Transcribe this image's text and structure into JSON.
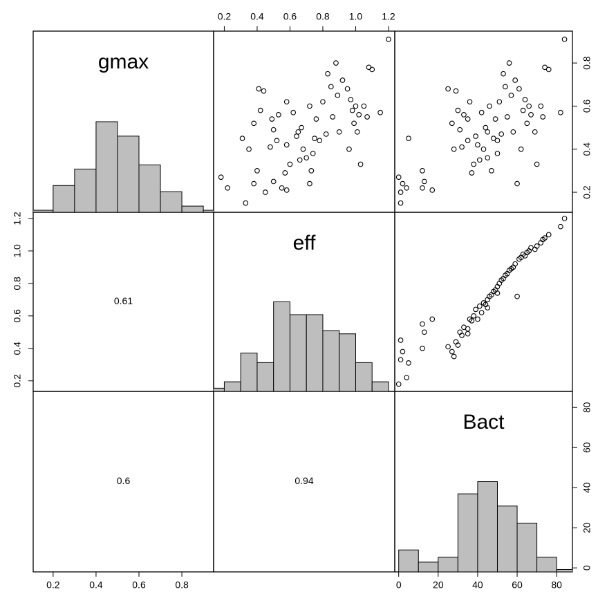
{
  "chart_data": {
    "type": "pairs",
    "variables": [
      {
        "name": "gmax",
        "lim": [
          0.107,
          0.948
        ],
        "ticks": [
          0.2,
          0.4,
          0.6,
          0.8
        ],
        "values": [
          0.27,
          0.15,
          0.2,
          0.24,
          0.22,
          0.45,
          0.3,
          0.22,
          0.25,
          0.21,
          0.68,
          0.52,
          0.4,
          0.67,
          0.58,
          0.49,
          0.41,
          0.56,
          0.54,
          0.62,
          0.29,
          0.33,
          0.46,
          0.42,
          0.35,
          0.57,
          0.4,
          0.5,
          0.36,
          0.6,
          0.3,
          0.45,
          0.54,
          0.44,
          0.62,
          0.47,
          0.75,
          0.69,
          0.55,
          0.8,
          0.65,
          0.48,
          0.72,
          0.24,
          0.68,
          0.4,
          0.58,
          0.63,
          0.52,
          0.6,
          0.56,
          0.48,
          0.33,
          0.6,
          0.55,
          0.78,
          0.77,
          0.57,
          0.91,
          0.44,
          0.48,
          0.38
        ],
        "hist": {
          "bins": [
            0.1,
            0.2,
            0.3,
            0.4,
            0.5,
            0.6,
            0.7,
            0.8,
            0.9,
            1.0
          ],
          "counts": [
            1,
            13,
            21,
            44,
            37,
            23,
            10,
            3,
            1
          ],
          "ylim": [
            0,
            88
          ]
        }
      },
      {
        "name": "eff",
        "lim": [
          0.135,
          1.238
        ],
        "ticks": [
          0.2,
          0.4,
          0.6,
          0.8,
          {
            "value": 1,
            "label": "1.0"
          },
          1.2
        ],
        "values": [
          0.18,
          0.33,
          0.45,
          0.38,
          0.22,
          0.31,
          0.4,
          0.55,
          0.5,
          0.58,
          0.41,
          0.38,
          0.35,
          0.44,
          0.42,
          0.5,
          0.48,
          0.53,
          0.49,
          0.58,
          0.57,
          0.6,
          0.64,
          0.58,
          0.66,
          0.62,
          0.68,
          0.67,
          0.7,
          0.72,
          0.73,
          0.75,
          0.76,
          0.78,
          0.8,
          0.82,
          0.83,
          0.85,
          0.86,
          0.88,
          0.89,
          0.9,
          0.92,
          0.72,
          0.95,
          0.96,
          0.98,
          0.97,
          0.99,
          1.0,
          1.02,
          1.01,
          1.03,
          1.05,
          1.07,
          1.08,
          1.1,
          1.15,
          1.2,
          0.52,
          0.65,
          0.74
        ],
        "hist": {
          "bins": [
            0.1,
            0.2,
            0.3,
            0.4,
            0.5,
            0.6,
            0.7,
            0.8,
            0.9,
            1.0,
            1.1,
            1.2
          ],
          "counts": [
            1,
            3,
            12,
            9,
            28,
            24,
            24,
            19,
            18,
            9,
            3
          ],
          "ylim": [
            0,
            56
          ]
        }
      },
      {
        "name": "Bact",
        "lim": [
          -2,
          88
        ],
        "ticks": [
          0,
          20,
          40,
          60,
          80
        ],
        "values": [
          0,
          1,
          1,
          2,
          4,
          5,
          12,
          12,
          13,
          17,
          25,
          27,
          28,
          29,
          30,
          31,
          32,
          33,
          35,
          36,
          37,
          38,
          39,
          40,
          41,
          42,
          43,
          44,
          45,
          46,
          47,
          48,
          49,
          50,
          51,
          52,
          53,
          54,
          55,
          56,
          57,
          58,
          59,
          60,
          61,
          62,
          63,
          64,
          65,
          66,
          67,
          69,
          70,
          72,
          73,
          74,
          76,
          82,
          84,
          35,
          45,
          50
        ],
        "hist": {
          "bins": [
            0,
            10,
            20,
            30,
            40,
            50,
            60,
            70,
            80,
            90
          ],
          "counts": [
            9,
            4,
            6,
            32,
            37,
            27,
            20,
            6,
            1
          ],
          "ylim": [
            0,
            74
          ]
        }
      }
    ],
    "correlations": [
      0.61,
      0.6,
      0.94
    ]
  }
}
